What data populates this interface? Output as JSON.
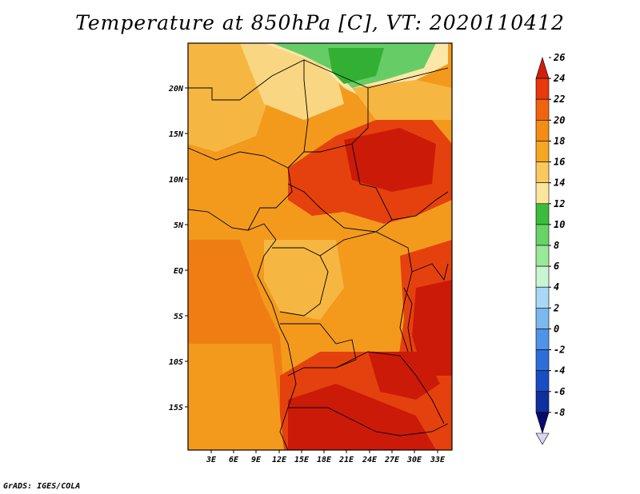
{
  "title": "Temperature at 850hPa [C], VT: 2020110412",
  "credit": "GrADS: IGES/COLA",
  "map": {
    "lat_labels": [
      "20N",
      "15N",
      "10N",
      "5N",
      "EQ",
      "5S",
      "10S",
      "15S"
    ],
    "lon_labels": [
      "3E",
      "6E",
      "9E",
      "12E",
      "15E",
      "18E",
      "21E",
      "24E",
      "27E",
      "30E",
      "33E"
    ]
  },
  "colorbar": {
    "labels": [
      "26",
      "24",
      "22",
      "20",
      "18",
      "16",
      "14",
      "12",
      "10",
      "8",
      "6",
      "4",
      "2",
      "0",
      "-2",
      "-4",
      "-6",
      "-8"
    ],
    "colors": [
      "#d21e0c",
      "#e8390c",
      "#f0640f",
      "#f28c14",
      "#f5a623",
      "#f9c95e",
      "#fbe69c",
      "#3dbb3d",
      "#66d466",
      "#9ae89a",
      "#c8f5d2",
      "#a8d8f5",
      "#7ab8ee",
      "#4f94e6",
      "#2d6fd9",
      "#1a4dc2",
      "#0f2f9e",
      "#0a0a6e"
    ]
  },
  "field_colors": {
    "very_hot": "#cc1a08",
    "hot": "#e5410e",
    "warm_orange": "#f07d14",
    "orange": "#f39a1d",
    "light_orange": "#f6b742",
    "pale": "#f9d682",
    "cream": "#fbe7a8",
    "green": "#33b033",
    "light_green": "#66cc66"
  }
}
